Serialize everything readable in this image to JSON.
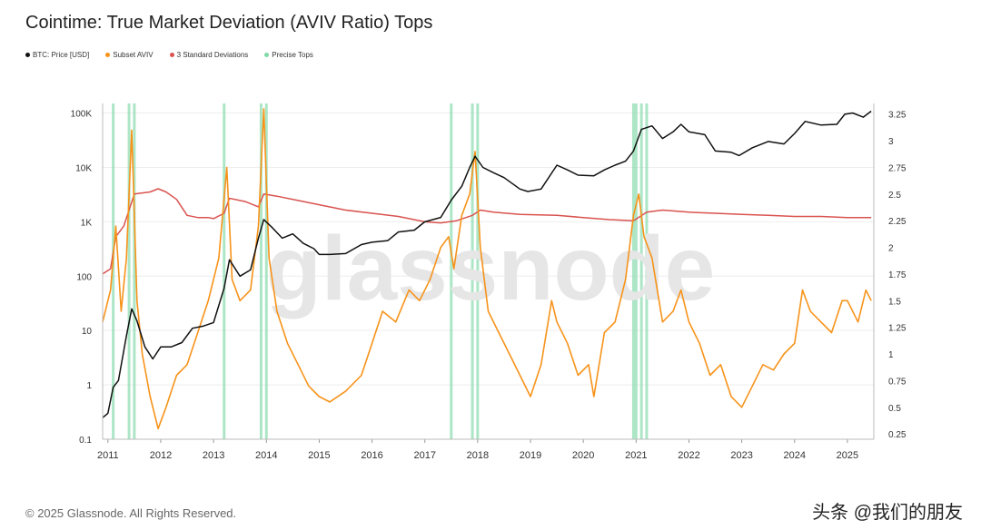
{
  "title": "Cointime: True Market Deviation (AVIV Ratio) Tops",
  "legend": [
    {
      "label": "BTC: Price [USD]",
      "color": "#111111"
    },
    {
      "label": "Subset AVIV",
      "color": "#f7931a"
    },
    {
      "label": "3 Standard Deviations",
      "color": "#d9534f"
    },
    {
      "label": "Precise Tops",
      "color": "#7fd9a8"
    }
  ],
  "watermark": "glassnode",
  "footer": {
    "copyright": "© 2025 Glassnode. All Rights Reserved.",
    "source_mark": "头条 @我们的朋友"
  },
  "chart_data": {
    "type": "line",
    "title": "Cointime: True Market Deviation (AVIV Ratio) Tops",
    "x_ticks": [
      "2011",
      "2012",
      "2013",
      "2014",
      "2015",
      "2016",
      "2017",
      "2018",
      "2019",
      "2020",
      "2021",
      "2022",
      "2023",
      "2024",
      "2025"
    ],
    "xlim": [
      2010.9,
      2025.5
    ],
    "y_left_ticks": [
      "100K",
      "10K",
      "1K",
      "100",
      "10",
      "1",
      "0.1"
    ],
    "y_left_scale": "log",
    "y_left_lim": [
      0.1,
      150000
    ],
    "y_right_ticks": [
      "3.25",
      "3",
      "2.75",
      "2.5",
      "2.25",
      "2",
      "1.75",
      "1.5",
      "1.25",
      "1",
      "0.75",
      "0.5",
      "0.25"
    ],
    "y_right_lim": [
      0.2,
      3.35
    ],
    "precise_tops": [
      2011.1,
      2011.4,
      2011.5,
      2013.2,
      2013.9,
      2014.0,
      2017.5,
      2017.9,
      2018.0,
      2020.95,
      2021.0,
      2021.1,
      2021.2
    ],
    "series": [
      {
        "name": "BTC: Price [USD]",
        "axis": "left",
        "color": "#111111",
        "x": [
          2010.9,
          2011.0,
          2011.1,
          2011.2,
          2011.35,
          2011.45,
          2011.55,
          2011.7,
          2011.85,
          2012.0,
          2012.2,
          2012.4,
          2012.6,
          2012.8,
          2013.0,
          2013.2,
          2013.3,
          2013.5,
          2013.7,
          2013.85,
          2013.95,
          2014.1,
          2014.3,
          2014.5,
          2014.7,
          2014.9,
          2015.0,
          2015.2,
          2015.5,
          2015.8,
          2016.0,
          2016.3,
          2016.5,
          2016.8,
          2017.0,
          2017.3,
          2017.5,
          2017.7,
          2017.85,
          2017.95,
          2018.1,
          2018.3,
          2018.5,
          2018.8,
          2018.95,
          2019.2,
          2019.5,
          2019.7,
          2019.9,
          2020.2,
          2020.4,
          2020.6,
          2020.8,
          2020.95,
          2021.1,
          2021.3,
          2021.5,
          2021.7,
          2021.85,
          2022.0,
          2022.3,
          2022.5,
          2022.8,
          2022.95,
          2023.2,
          2023.5,
          2023.8,
          2024.0,
          2024.2,
          2024.5,
          2024.8,
          2024.95,
          2025.1,
          2025.3,
          2025.45
        ],
        "y": [
          0.25,
          0.3,
          0.9,
          1.2,
          8,
          25,
          15,
          5,
          3,
          5,
          5,
          6,
          11,
          12,
          14,
          60,
          200,
          100,
          130,
          500,
          1100,
          800,
          500,
          600,
          400,
          320,
          250,
          250,
          260,
          380,
          420,
          450,
          650,
          700,
          1000,
          1200,
          2500,
          4500,
          10000,
          16000,
          10000,
          8000,
          6500,
          4000,
          3600,
          4000,
          11000,
          9000,
          7200,
          7000,
          9000,
          11000,
          13000,
          20000,
          50000,
          58000,
          34000,
          45000,
          62000,
          45000,
          40000,
          20000,
          19000,
          16500,
          23000,
          30000,
          27000,
          42000,
          70000,
          60000,
          62000,
          95000,
          100000,
          84000,
          108000
        ]
      },
      {
        "name": "Subset AVIV",
        "axis": "right",
        "color": "#f7931a",
        "x": [
          2010.9,
          2011.05,
          2011.15,
          2011.25,
          2011.35,
          2011.45,
          2011.55,
          2011.65,
          2011.8,
          2011.95,
          2012.1,
          2012.3,
          2012.5,
          2012.7,
          2012.9,
          2013.0,
          2013.1,
          2013.25,
          2013.35,
          2013.5,
          2013.7,
          2013.85,
          2013.95,
          2014.05,
          2014.2,
          2014.4,
          2014.6,
          2014.8,
          2015.0,
          2015.2,
          2015.5,
          2015.8,
          2016.0,
          2016.2,
          2016.45,
          2016.7,
          2016.9,
          2017.1,
          2017.3,
          2017.45,
          2017.55,
          2017.7,
          2017.85,
          2017.95,
          2018.05,
          2018.2,
          2018.4,
          2018.6,
          2018.8,
          2019.0,
          2019.2,
          2019.4,
          2019.5,
          2019.7,
          2019.9,
          2020.1,
          2020.2,
          2020.4,
          2020.6,
          2020.8,
          2020.95,
          2021.05,
          2021.15,
          2021.3,
          2021.5,
          2021.7,
          2021.85,
          2022.0,
          2022.2,
          2022.4,
          2022.6,
          2022.8,
          2023.0,
          2023.2,
          2023.4,
          2023.6,
          2023.8,
          2024.0,
          2024.15,
          2024.3,
          2024.5,
          2024.7,
          2024.9,
          2025.0,
          2025.2,
          2025.35,
          2025.45
        ],
        "y": [
          1.3,
          1.6,
          2.2,
          1.4,
          1.9,
          3.1,
          1.5,
          1.0,
          0.6,
          0.3,
          0.5,
          0.8,
          0.9,
          1.2,
          1.5,
          1.7,
          1.9,
          2.75,
          1.7,
          1.5,
          1.6,
          2.2,
          3.3,
          1.9,
          1.4,
          1.1,
          0.9,
          0.7,
          0.6,
          0.55,
          0.65,
          0.8,
          1.1,
          1.4,
          1.3,
          1.6,
          1.5,
          1.7,
          2.0,
          2.1,
          1.8,
          2.3,
          2.5,
          2.9,
          2.0,
          1.4,
          1.2,
          1.0,
          0.8,
          0.6,
          0.9,
          1.5,
          1.3,
          1.1,
          0.8,
          0.9,
          0.6,
          1.2,
          1.3,
          1.7,
          2.3,
          2.5,
          2.1,
          1.9,
          1.3,
          1.4,
          1.6,
          1.3,
          1.1,
          0.8,
          0.9,
          0.6,
          0.5,
          0.7,
          0.9,
          0.85,
          1.0,
          1.1,
          1.6,
          1.4,
          1.3,
          1.2,
          1.5,
          1.5,
          1.3,
          1.6,
          1.5
        ]
      },
      {
        "name": "3 Standard Deviations",
        "axis": "right",
        "color": "#d9534f",
        "x": [
          2010.9,
          2011.05,
          2011.15,
          2011.3,
          2011.5,
          2011.8,
          2011.95,
          2012.1,
          2012.3,
          2012.5,
          2012.7,
          2012.9,
          2013.0,
          2013.2,
          2013.3,
          2013.6,
          2013.85,
          2013.95,
          2014.2,
          2014.6,
          2015.0,
          2015.5,
          2016.0,
          2016.5,
          2017.0,
          2017.3,
          2017.6,
          2017.9,
          2018.05,
          2018.3,
          2018.8,
          2019.5,
          2020.0,
          2020.5,
          2020.95,
          2021.2,
          2021.5,
          2022.0,
          2022.5,
          2023.0,
          2023.5,
          2024.0,
          2024.5,
          2025.0,
          2025.45
        ],
        "y": [
          1.75,
          1.8,
          2.1,
          2.2,
          2.5,
          2.52,
          2.55,
          2.52,
          2.45,
          2.3,
          2.28,
          2.28,
          2.27,
          2.32,
          2.46,
          2.43,
          2.38,
          2.5,
          2.48,
          2.44,
          2.4,
          2.35,
          2.32,
          2.29,
          2.24,
          2.23,
          2.25,
          2.3,
          2.35,
          2.33,
          2.31,
          2.3,
          2.28,
          2.26,
          2.25,
          2.33,
          2.35,
          2.33,
          2.32,
          2.31,
          2.3,
          2.29,
          2.29,
          2.28,
          2.28
        ]
      }
    ]
  }
}
